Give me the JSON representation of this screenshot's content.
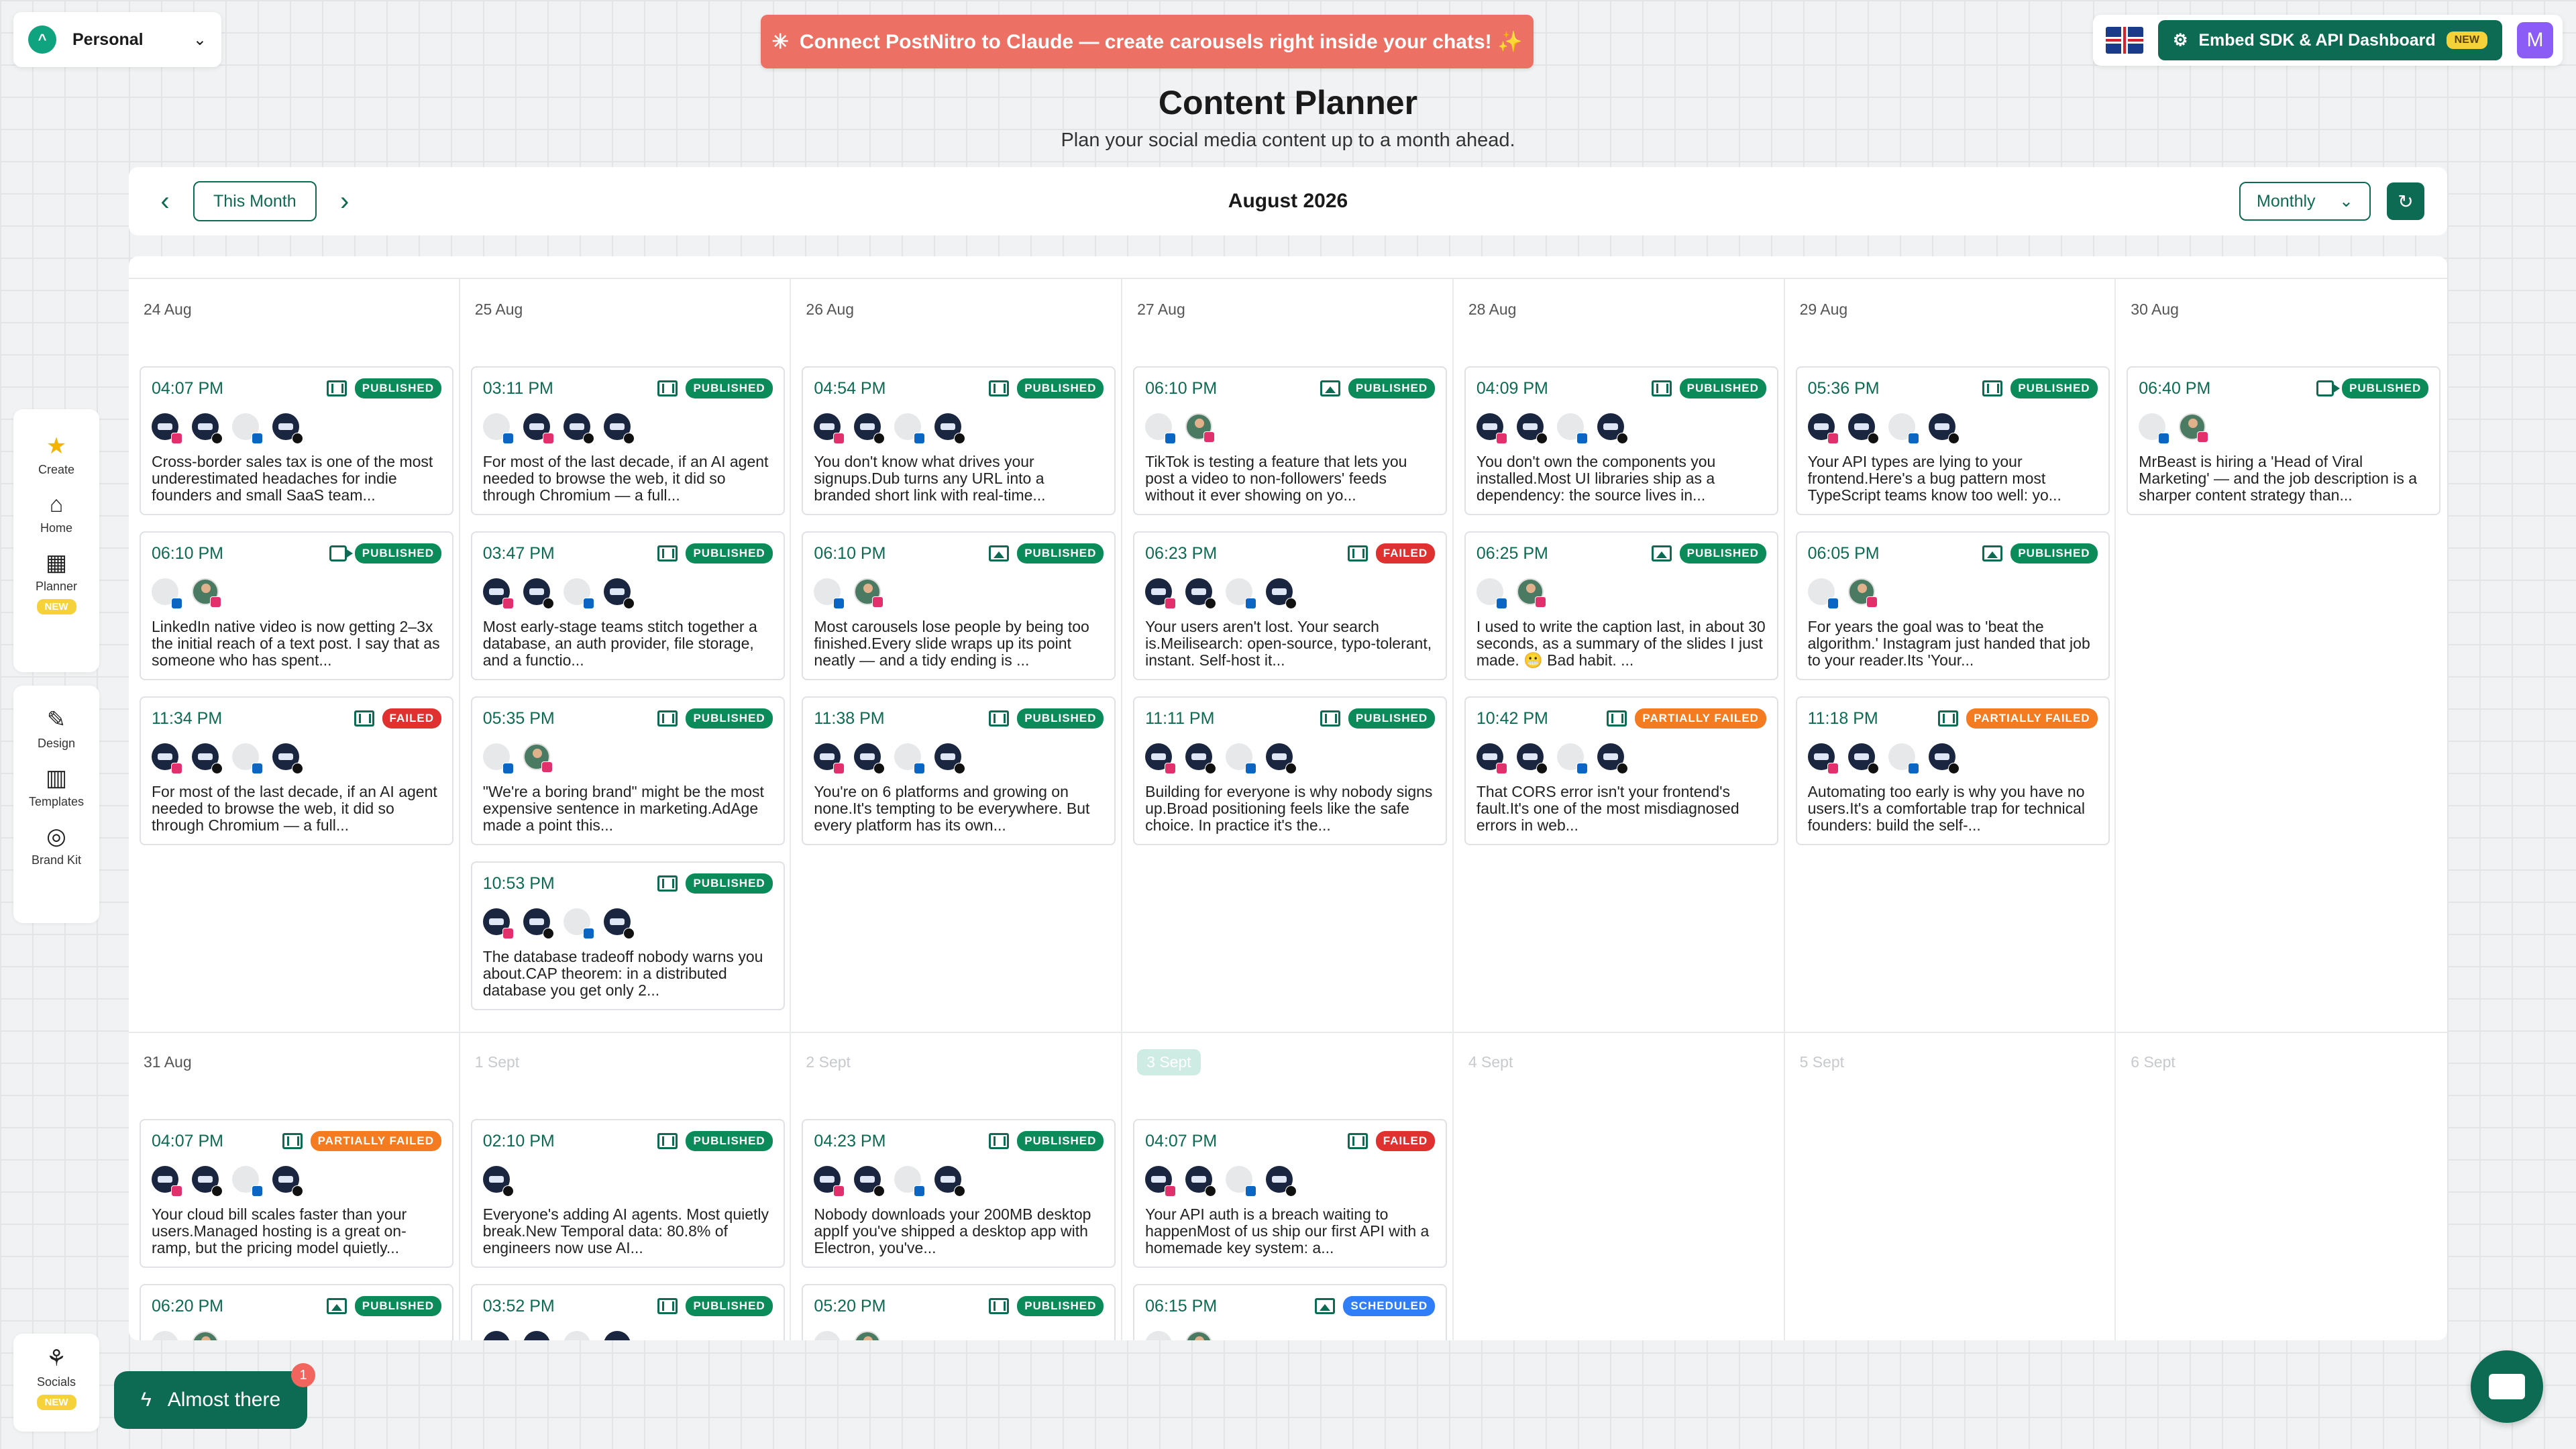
{
  "workspace": {
    "name": "Personal"
  },
  "banner": {
    "text": "Connect PostNitro to Claude — create carousels right inside your chats! ✨"
  },
  "topright": {
    "sdk_label": "Embed SDK & API Dashboard",
    "sdk_badge": "NEW",
    "avatar_letter": "M"
  },
  "header": {
    "title": "Content Planner",
    "subtitle": "Plan your social media content up to a month ahead."
  },
  "toolbar": {
    "this_month": "This Month",
    "month_label": "August 2026",
    "view": "Monthly"
  },
  "sidebar": {
    "main": [
      {
        "label": "Create",
        "icon": "star-icon"
      },
      {
        "label": "Home",
        "icon": "home-icon"
      },
      {
        "label": "Planner",
        "icon": "calendar-icon",
        "badge": "NEW"
      }
    ],
    "tools": [
      {
        "label": "Design",
        "icon": "design-icon"
      },
      {
        "label": "Templates",
        "icon": "templates-icon"
      },
      {
        "label": "Brand Kit",
        "icon": "brand-kit-icon"
      }
    ],
    "socials": {
      "label": "Socials",
      "badge": "NEW"
    }
  },
  "almost": {
    "label": "Almost there",
    "count": "1"
  },
  "status_labels": {
    "published": "PUBLISHED",
    "failed": "FAILED",
    "partially-failed": "PARTIALLY FAILED",
    "scheduled": "SCHEDULED"
  },
  "weeks": [
    {
      "days": [
        {
          "label": "24 Aug",
          "posts": [
            {
              "time": "04:07 PM",
              "type": "carousel",
              "status": "published",
              "avatars": [
                "d:i",
                "d:t",
                "g:l",
                "d:t"
              ],
              "text": "Cross-border sales tax is one of the most underestimated headaches for indie founders and small SaaS team..."
            },
            {
              "time": "06:10 PM",
              "type": "video",
              "status": "published",
              "avatars": [
                "g:l",
                "p:i"
              ],
              "text": "LinkedIn native video is now getting 2–3x the initial reach of a text post. I say that as someone who has spent..."
            },
            {
              "time": "11:34 PM",
              "type": "carousel",
              "status": "failed",
              "avatars": [
                "d:i",
                "d:t",
                "g:l",
                "d:t"
              ],
              "text": "For most of the last decade, if an AI agent needed to browse the web, it did so through Chromium — a full..."
            }
          ]
        },
        {
          "label": "25 Aug",
          "posts": [
            {
              "time": "03:11 PM",
              "type": "carousel",
              "status": "published",
              "avatars": [
                "g:l",
                "d:i",
                "d:t",
                "d:t"
              ],
              "text": "For most of the last decade, if an AI agent needed to browse the web, it did so through Chromium — a full..."
            },
            {
              "time": "03:47 PM",
              "type": "carousel",
              "status": "published",
              "avatars": [
                "d:i",
                "d:t",
                "g:l",
                "d:t"
              ],
              "text": "Most early-stage teams stitch together a database, an auth provider, file storage, and a functio..."
            },
            {
              "time": "05:35 PM",
              "type": "carousel",
              "status": "published",
              "avatars": [
                "g:l",
                "p:i"
              ],
              "text": "\"We're a boring brand\" might be the most expensive sentence in marketing.AdAge made a point this..."
            },
            {
              "time": "10:53 PM",
              "type": "carousel",
              "status": "published",
              "avatars": [
                "d:i",
                "d:t",
                "g:l",
                "d:t"
              ],
              "text": "The database tradeoff nobody warns you about.CAP theorem: in a distributed database you get only 2..."
            }
          ]
        },
        {
          "label": "26 Aug",
          "posts": [
            {
              "time": "04:54 PM",
              "type": "carousel",
              "status": "published",
              "avatars": [
                "d:i",
                "d:t",
                "g:l",
                "d:t"
              ],
              "text": "You don't know what drives your signups.Dub turns any URL into a branded short link with real-time..."
            },
            {
              "time": "06:10 PM",
              "type": "image",
              "status": "published",
              "avatars": [
                "g:l",
                "p:i"
              ],
              "text": "Most carousels lose people by being too finished.Every slide wraps up its point neatly — and a tidy ending is ..."
            },
            {
              "time": "11:38 PM",
              "type": "carousel",
              "status": "published",
              "avatars": [
                "d:i",
                "d:t",
                "g:l",
                "d:t"
              ],
              "text": "You're on 6 platforms and growing on none.It's tempting to be everywhere. But every platform has its own..."
            }
          ]
        },
        {
          "label": "27 Aug",
          "posts": [
            {
              "time": "06:10 PM",
              "type": "image",
              "status": "published",
              "avatars": [
                "g:l",
                "p:i"
              ],
              "text": "TikTok is testing a feature that lets you post a video to non-followers' feeds without it ever showing on yo..."
            },
            {
              "time": "06:23 PM",
              "type": "carousel",
              "status": "failed",
              "avatars": [
                "d:i",
                "d:t",
                "g:l",
                "d:t"
              ],
              "text": "Your users aren't lost. Your search is.Meilisearch: open-source, typo-tolerant, instant. Self-host it..."
            },
            {
              "time": "11:11 PM",
              "type": "carousel",
              "status": "published",
              "avatars": [
                "d:i",
                "d:t",
                "g:l",
                "d:t"
              ],
              "text": "Building for everyone is why nobody signs up.Broad positioning feels like the safe choice. In practice it's the..."
            }
          ]
        },
        {
          "label": "28 Aug",
          "posts": [
            {
              "time": "04:09 PM",
              "type": "carousel",
              "status": "published",
              "avatars": [
                "d:i",
                "d:t",
                "g:l",
                "d:t"
              ],
              "text": "You don't own the components you installed.Most UI libraries ship as a dependency: the source lives in..."
            },
            {
              "time": "06:25 PM",
              "type": "image",
              "status": "published",
              "avatars": [
                "g:l",
                "p:i"
              ],
              "text": "I used to write the caption last, in about 30 seconds, as a summary of the slides I just made. 😬 Bad habit. ..."
            },
            {
              "time": "10:42 PM",
              "type": "carousel",
              "status": "partially-failed",
              "avatars": [
                "d:i",
                "d:t",
                "g:l",
                "d:t"
              ],
              "text": "That CORS error isn't your frontend's fault.It's one of the most misdiagnosed errors in web..."
            }
          ]
        },
        {
          "label": "29 Aug",
          "posts": [
            {
              "time": "05:36 PM",
              "type": "carousel",
              "status": "published",
              "avatars": [
                "d:i",
                "d:t",
                "g:l",
                "d:t"
              ],
              "text": "Your API types are lying to your frontend.Here's a bug pattern most TypeScript teams know too well: yo..."
            },
            {
              "time": "06:05 PM",
              "type": "image",
              "status": "published",
              "avatars": [
                "g:l",
                "p:i"
              ],
              "text": "For years the goal was to 'beat the algorithm.' Instagram just handed that job to your reader.Its 'Your..."
            },
            {
              "time": "11:18 PM",
              "type": "carousel",
              "status": "partially-failed",
              "avatars": [
                "d:i",
                "d:t",
                "g:l",
                "d:t"
              ],
              "text": "Automating too early is why you have no users.It's a comfortable trap for technical founders: build the self-..."
            }
          ]
        },
        {
          "label": "30 Aug",
          "posts": [
            {
              "time": "06:40 PM",
              "type": "video",
              "status": "published",
              "avatars": [
                "g:l",
                "p:i"
              ],
              "text": "MrBeast is hiring a 'Head of Viral Marketing' — and the job description is a sharper content strategy than..."
            }
          ]
        }
      ]
    },
    {
      "days": [
        {
          "label": "31 Aug",
          "posts": [
            {
              "time": "04:07 PM",
              "type": "carousel",
              "status": "partially-failed",
              "avatars": [
                "d:i",
                "d:t",
                "g:l",
                "d:t"
              ],
              "text": "Your cloud bill scales faster than your users.Managed hosting is a great on-ramp, but the pricing model quietly..."
            },
            {
              "time": "06:20 PM",
              "type": "image",
              "status": "published",
              "avatars": [
                "g:l",
                "p:i"
              ],
              "text": ""
            }
          ]
        },
        {
          "label": "1 Sept",
          "dim": true,
          "posts": [
            {
              "time": "02:10 PM",
              "type": "carousel",
              "status": "published",
              "avatars": [
                "d:t"
              ],
              "text": "Everyone's adding AI agents. Most quietly break.New Temporal data: 80.8% of engineers now use AI..."
            },
            {
              "time": "03:52 PM",
              "type": "carousel",
              "status": "published",
              "avatars": [
                "d:i",
                "d:t",
                "g:l",
                "d:t"
              ],
              "text": ""
            }
          ]
        },
        {
          "label": "2 Sept",
          "dim": true,
          "posts": [
            {
              "time": "04:23 PM",
              "type": "carousel",
              "status": "published",
              "avatars": [
                "d:i",
                "d:t",
                "g:l",
                "d:t"
              ],
              "text": "Nobody downloads your 200MB desktop appIf you've shipped a desktop app with Electron, you've..."
            },
            {
              "time": "05:20 PM",
              "type": "carousel",
              "status": "published",
              "avatars": [
                "g:l",
                "p:i"
              ],
              "text": ""
            }
          ]
        },
        {
          "label": "3 Sept",
          "today": true,
          "posts": [
            {
              "time": "04:07 PM",
              "type": "carousel",
              "status": "failed",
              "avatars": [
                "d:i",
                "d:t",
                "g:l",
                "d:t"
              ],
              "text": "Your API auth is a breach waiting to happenMost of us ship our first API with a homemade key system: a..."
            },
            {
              "time": "06:15 PM",
              "type": "image",
              "status": "scheduled",
              "avatars": [
                "g:l",
                "p:i"
              ],
              "text": ""
            }
          ]
        },
        {
          "label": "4 Sept",
          "dim": true,
          "posts": []
        },
        {
          "label": "5 Sept",
          "dim": true,
          "posts": []
        },
        {
          "label": "6 Sept",
          "dim": true,
          "posts": []
        }
      ]
    }
  ]
}
